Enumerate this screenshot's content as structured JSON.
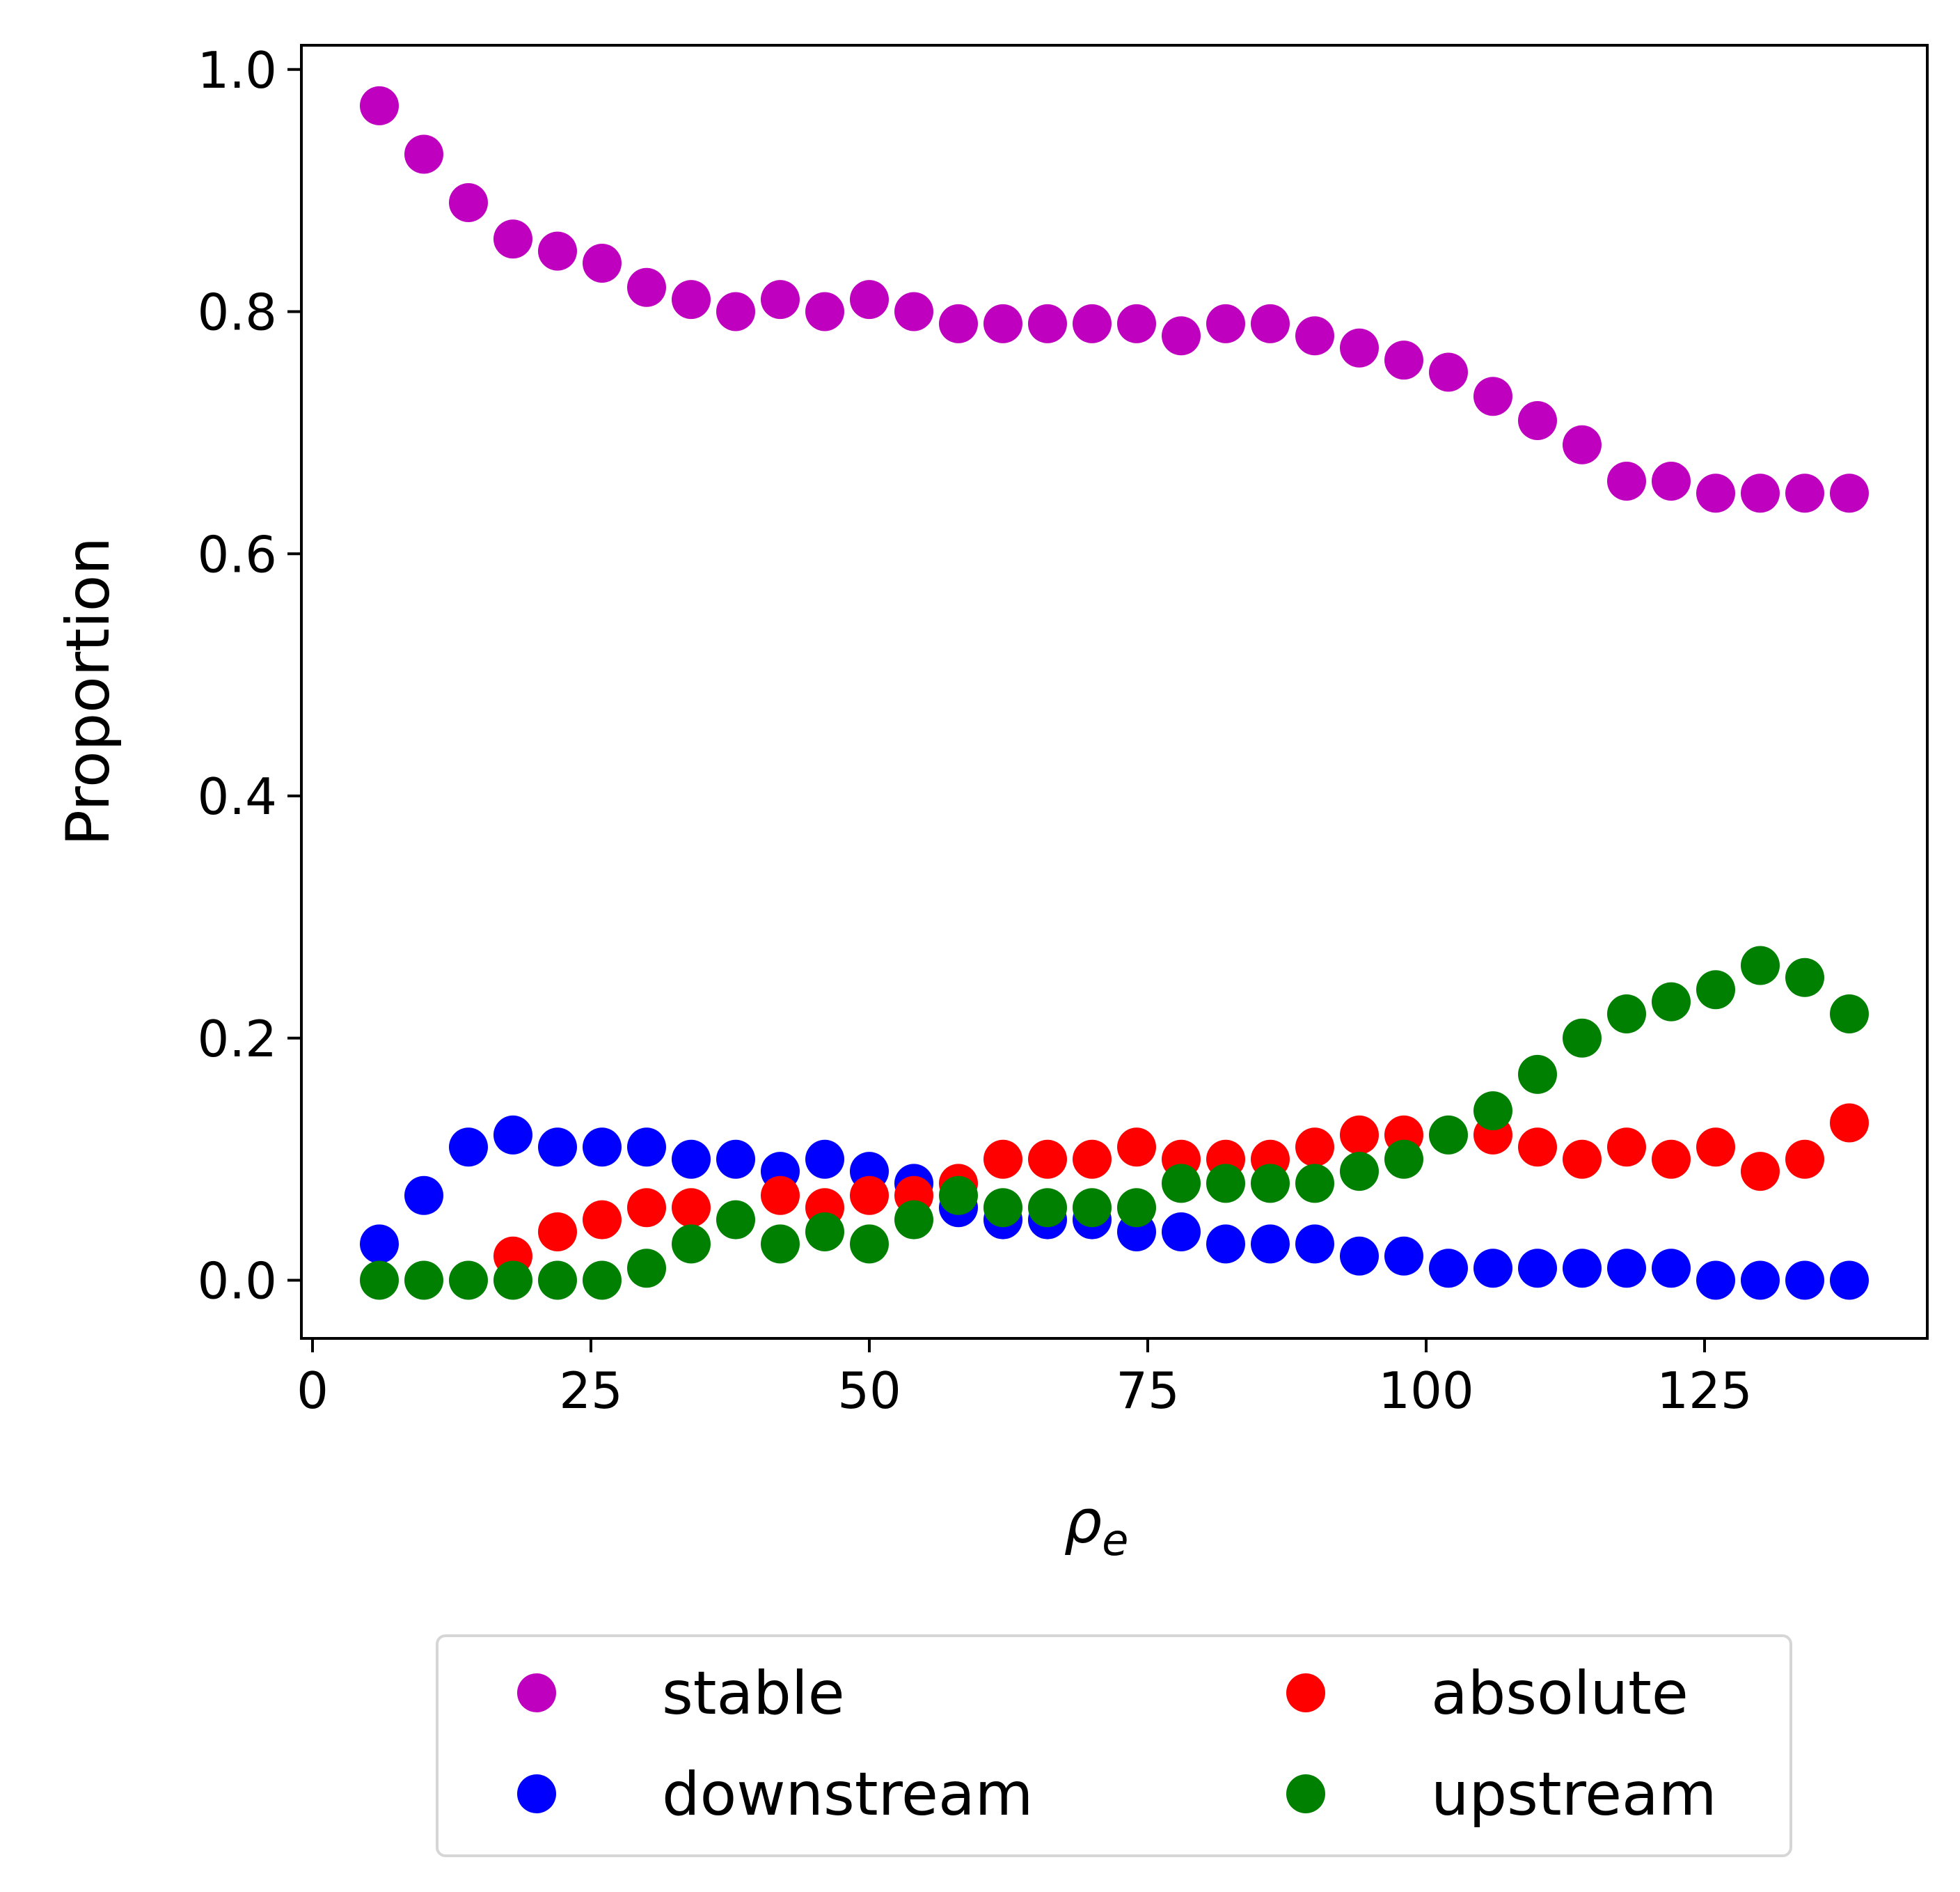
{
  "chart_data": {
    "type": "scatter",
    "title": "",
    "xlabel": "ρ",
    "xlabel_sub": "e",
    "ylabel": "Proportion",
    "xlim": [
      -1,
      145
    ],
    "ylim": [
      -0.048,
      1.02
    ],
    "xticks": [
      0,
      25,
      50,
      75,
      100,
      125
    ],
    "yticks": [
      0.0,
      0.2,
      0.4,
      0.6,
      0.8,
      1.0
    ],
    "ytick_labels": [
      "0.0",
      "0.2",
      "0.4",
      "0.6",
      "0.8",
      "1.0"
    ],
    "grid": false,
    "legend": {
      "placement": "below",
      "columns": 2
    },
    "x": [
      6,
      10,
      14,
      18,
      22,
      26,
      30,
      34,
      38,
      42,
      46,
      50,
      54,
      58,
      62,
      66,
      70,
      74,
      78,
      82,
      86,
      90,
      94,
      98,
      102,
      106,
      110,
      114,
      118,
      122,
      126,
      130,
      134,
      138
    ],
    "series": [
      {
        "name": "stable",
        "color": "#bf00bf",
        "values": [
          0.97,
          0.93,
          0.89,
          0.86,
          0.85,
          0.84,
          0.82,
          0.81,
          0.8,
          0.81,
          0.8,
          0.81,
          0.8,
          0.79,
          0.79,
          0.79,
          0.79,
          0.79,
          0.78,
          0.79,
          0.79,
          0.78,
          0.77,
          0.76,
          0.75,
          0.73,
          0.71,
          0.69,
          0.66,
          0.66,
          0.65,
          0.65,
          0.65,
          0.65
        ]
      },
      {
        "name": "absolute",
        "color": "#ff0000",
        "values": [
          null,
          null,
          null,
          0.02,
          0.04,
          0.05,
          0.06,
          0.06,
          null,
          0.07,
          0.06,
          0.07,
          0.07,
          0.08,
          0.1,
          0.1,
          0.1,
          0.11,
          0.1,
          0.1,
          0.1,
          0.11,
          0.12,
          0.12,
          null,
          0.12,
          0.11,
          0.1,
          0.11,
          0.1,
          0.11,
          0.09,
          0.1,
          0.13
        ]
      },
      {
        "name": "downstream",
        "color": "#0000ff",
        "values": [
          0.03,
          0.07,
          0.11,
          0.12,
          0.11,
          0.11,
          0.11,
          0.1,
          0.1,
          0.09,
          0.1,
          0.09,
          0.08,
          0.06,
          0.05,
          0.05,
          0.05,
          0.04,
          0.04,
          0.03,
          0.03,
          0.03,
          0.02,
          0.02,
          0.01,
          0.01,
          0.01,
          0.01,
          0.01,
          0.01,
          0.0,
          0.0,
          0.0,
          0.0
        ]
      },
      {
        "name": "upstream",
        "color": "#008000",
        "values": [
          0.0,
          0.0,
          0.0,
          0.0,
          0.0,
          0.0,
          0.01,
          0.03,
          0.05,
          0.03,
          0.04,
          0.03,
          0.05,
          0.07,
          0.06,
          0.06,
          0.06,
          0.06,
          0.08,
          0.08,
          0.08,
          0.08,
          0.09,
          0.1,
          0.12,
          0.14,
          0.17,
          0.2,
          0.22,
          0.23,
          0.24,
          0.26,
          0.25,
          0.22
        ]
      }
    ],
    "draw_order": [
      "stable",
      "downstream",
      "absolute",
      "upstream"
    ]
  }
}
